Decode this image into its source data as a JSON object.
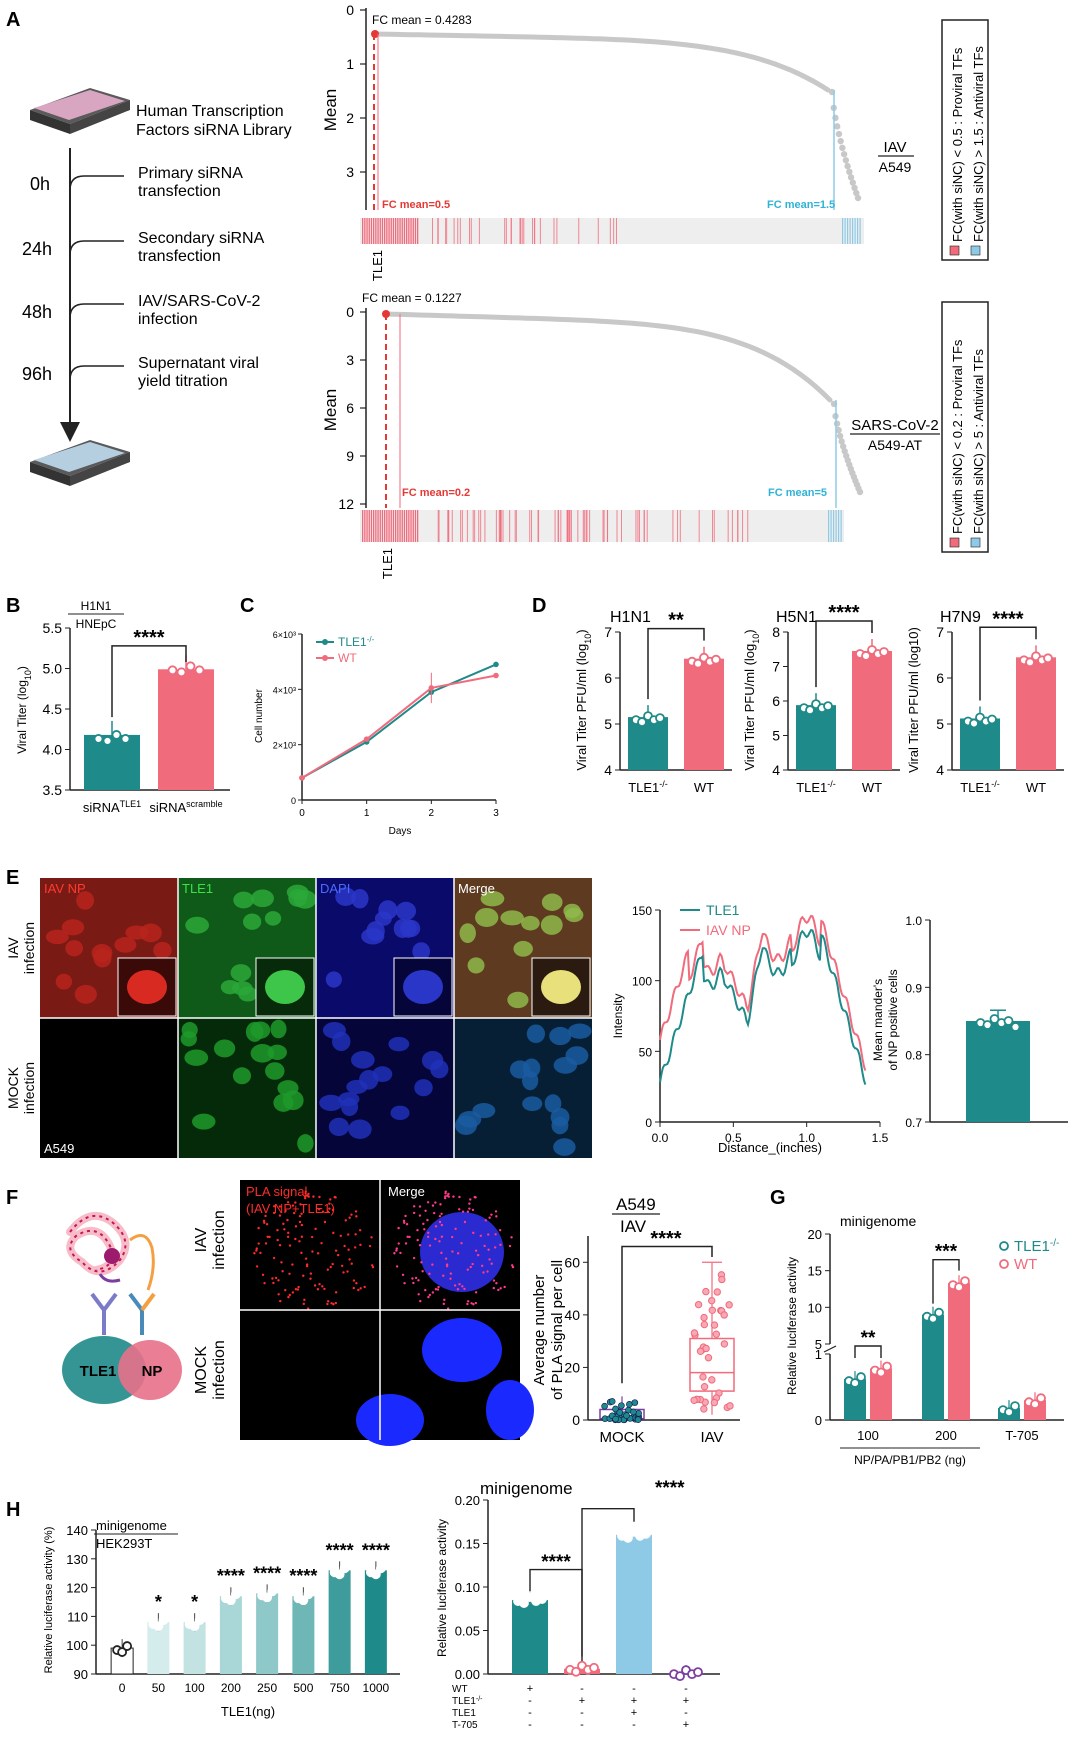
{
  "colors": {
    "teal": "#1f8a8a",
    "pink": "#f06b7c",
    "lightblue": "#8ecae6",
    "grey": "#c8c8c8",
    "red": "#e53935",
    "purple": "#7b3fa0"
  },
  "A": {
    "letter": "A",
    "library": [
      "Human Transcription",
      "Factors siRNA Library"
    ],
    "timeline": [
      {
        "time": "0h",
        "step": [
          "Primary siRNA",
          "transfection"
        ]
      },
      {
        "time": "24h",
        "step": [
          "Secondary siRNA",
          "transfection"
        ]
      },
      {
        "time": "48h",
        "step": [
          "IAV/SARS-CoV-2",
          "infection"
        ]
      },
      {
        "time": "96h",
        "step": [
          "Supernatant viral",
          "yield titration"
        ]
      }
    ],
    "top": {
      "ylabel": "Mean",
      "fc_note": "FC mean = 0.4283",
      "lo": "FC mean=0.5",
      "hi": "FC mean=1.5",
      "gene": "TLE1",
      "virus": "IAV",
      "cell": "A549",
      "legend1": "FC(with siNC) < 0.5 : Proviral TFs",
      "legend2": "FC(with siNC) > 1.5 : Antiviral TFs",
      "yticks": [
        "0",
        "1",
        "2",
        "3"
      ]
    },
    "bottom": {
      "ylabel": "Mean",
      "fc_note": "FC mean = 0.1227",
      "lo": "FC mean=0.2",
      "hi": "FC mean=5",
      "gene": "TLE1",
      "virus": "SARS-CoV-2",
      "cell": "A549-AT",
      "legend1": "FC(with siNC) < 0.2 : Proviral TFs",
      "legend2": "FC(with siNC) > 5 : Antiviral TFs",
      "yticks": [
        "0",
        "3",
        "6",
        "9",
        "12"
      ]
    }
  },
  "B": {
    "letter": "B",
    "title1": "H1N1",
    "title2": "HNEpC",
    "ylabel": "Viral Titer (log",
    "ysub": "10",
    "yclose": ")",
    "sig": "****",
    "yticks": [
      "3.5",
      "4.0",
      "4.5",
      "5.0",
      "5.5"
    ],
    "cat1": "siRNA",
    "cat1sup": "TLE1",
    "cat2": "siRNA",
    "cat2sup": "scramble",
    "values": [
      4.18,
      4.99
    ]
  },
  "C": {
    "letter": "C",
    "ylabel": "Cell number",
    "xlabel": "Days",
    "legend": [
      "TLE1",
      "WT"
    ],
    "legend_sup": "-/-",
    "yticks": [
      "0",
      "2×10³",
      "4×10³",
      "6×10³"
    ],
    "xticks": [
      "0",
      "1",
      "2",
      "3"
    ],
    "tle1": [
      800,
      2100,
      3900,
      4900
    ],
    "wt": [
      800,
      2200,
      4050,
      4500
    ]
  },
  "D": {
    "letter": "D",
    "panels": [
      {
        "title": "H1N1",
        "sig": "**",
        "ylabel": "Viral Titer PFU/ml (log",
        "ysub": "10",
        "yticks": [
          "4",
          "5",
          "6",
          "7"
        ],
        "values": [
          5.15,
          6.42
        ],
        "ymin": 4,
        "ymax": 7
      },
      {
        "title": "H5N1",
        "sig": "****",
        "ylabel": "Viral Titer PFU/ml (log",
        "ysub": "10",
        "yticks": [
          "4",
          "5",
          "6",
          "7",
          "8"
        ],
        "values": [
          5.88,
          7.45
        ],
        "ymin": 4,
        "ymax": 8
      },
      {
        "title": "H7N9",
        "sig": "****",
        "ylabel": "Viral Titer PFU/ml (log10)",
        "ysub": "",
        "yticks": [
          "4",
          "5",
          "6",
          "7"
        ],
        "values": [
          5.12,
          6.45
        ],
        "ymin": 4,
        "ymax": 7
      }
    ],
    "cat1": "TLE1",
    "cat1sup": "-/-",
    "cat2": "WT"
  },
  "E": {
    "letter": "E",
    "channels": [
      "IAV NP",
      "TLE1",
      "DAPI",
      "Merge"
    ],
    "rows": [
      "IAV",
      "infection",
      "MOCK",
      "infection"
    ],
    "cell": "A549",
    "ylabel": "Intensity",
    "xlabel": "Distance_(inches)",
    "legend": [
      "TLE1",
      "IAV NP"
    ],
    "yticks": [
      "0",
      "50",
      "100",
      "150"
    ],
    "xticks": [
      "0.0",
      "0.5",
      "1.0",
      "1.5"
    ],
    "bar_ylabel1": "Mean mander's",
    "bar_ylabel2": "of NP positive cells",
    "bar_yticks": [
      "0.7",
      "0.8",
      "0.9",
      "1.0"
    ],
    "bar_value": 0.85
  },
  "F": {
    "letter": "F",
    "schematic_tle1": "TLE1",
    "schematic_np": "NP",
    "pla": "PLA signal",
    "pla2": "(IAV NP+TLE1)",
    "merge": "Merge",
    "rows": [
      "IAV",
      "infection",
      "MOCK",
      "infection"
    ],
    "title1": "A549",
    "title2": "IAV",
    "sig": "****",
    "ylabel1": "Average number",
    "ylabel2": "of PLA signal per cell",
    "yticks": [
      "0",
      "20",
      "40",
      "60"
    ],
    "cats": [
      "MOCK",
      "IAV"
    ]
  },
  "G": {
    "letter": "G",
    "title": "minigenome",
    "ylabel": "Relative luciferase activity",
    "legend": [
      "TLE1",
      "WT"
    ],
    "legend_sup": "-/-",
    "yticks": [
      "0",
      "1",
      "5",
      "10",
      "15",
      "20"
    ],
    "groups": [
      "100",
      "200",
      "T-705"
    ],
    "xlabel": "NP/PA/PB1/PB2 (ng)",
    "sig": [
      "**",
      "***"
    ],
    "tle1": [
      0.62,
      9.0,
      0.18
    ],
    "wt": [
      0.78,
      13.3,
      0.3
    ]
  },
  "H": {
    "letter": "H",
    "left": {
      "title1": "minigenome",
      "title2": "HEK293T",
      "ylabel": "Relative luciferase activity (%)",
      "xlabel": "TLE1(ng)",
      "yticks": [
        "90",
        "100",
        "110",
        "120",
        "130",
        "140"
      ],
      "cats": [
        "0",
        "50",
        "100",
        "200",
        "250",
        "500",
        "750",
        "1000"
      ],
      "values": [
        99,
        108,
        108,
        117,
        118,
        117,
        126,
        126
      ],
      "sig": [
        "",
        "*",
        "*",
        "****",
        "****",
        "****",
        "****",
        "****"
      ]
    },
    "right": {
      "title": "minigenome",
      "sig": "****",
      "ylabel": "Relative luciferase activity",
      "yticks": [
        "0.00",
        "0.05",
        "0.10",
        "0.15",
        "0.20"
      ],
      "values": [
        0.085,
        0.006,
        0.16,
        0.001
      ],
      "rows": [
        {
          "label": "WT",
          "v": [
            "+",
            "-",
            "-",
            "-"
          ]
        },
        {
          "label": "TLE1",
          "sup": "-/-",
          "v": [
            "-",
            "+",
            "+",
            "+"
          ]
        },
        {
          "label": "TLE1",
          "v": [
            "-",
            "-",
            "+",
            "-"
          ]
        },
        {
          "label": "T-705",
          "v": [
            "-",
            "-",
            "-",
            "+"
          ]
        }
      ]
    }
  }
}
